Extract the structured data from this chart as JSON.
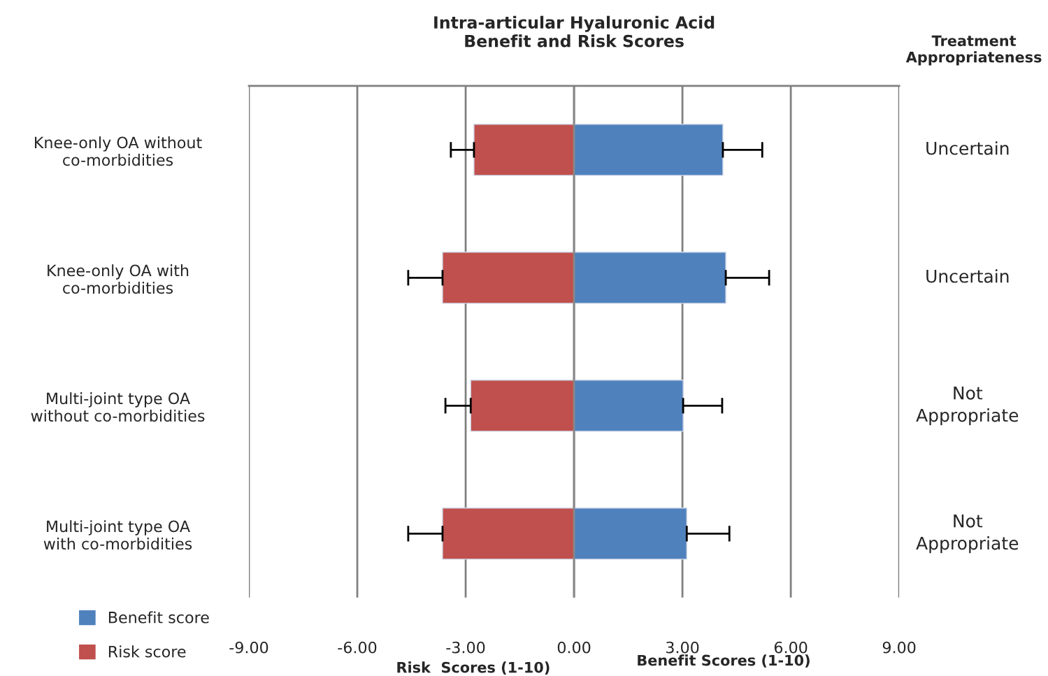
{
  "chart_data": {
    "type": "bar",
    "orientation": "horizontal",
    "title": "Intra-articular Hyaluronic Acid\nBenefit and Risk Scores",
    "xlabel": "Risk  Scores (1-10)",
    "categories": [
      "Knee-only OA without\nco-morbidities",
      "Knee-only OA with\nco-morbidities",
      "Multi-joint type OA\nwithout co-morbidities",
      "Multi-joint type OA\nwith co-morbidities"
    ],
    "series": [
      {
        "name": "Benefit score",
        "color": "#4f81bd",
        "values": [
          4.12,
          4.2,
          3.02,
          3.12
        ],
        "errors": [
          [
            4.12,
            5.21
          ],
          [
            4.2,
            5.4
          ],
          [
            3.02,
            4.1
          ],
          [
            3.12,
            4.3
          ]
        ]
      },
      {
        "name": "Risk score",
        "color": "#c0504d",
        "values": [
          -2.77,
          -3.64,
          -2.86,
          -3.64
        ],
        "errors": [
          [
            -3.41,
            -2.77
          ],
          [
            -4.59,
            -3.64
          ],
          [
            -3.56,
            -2.86
          ],
          [
            -4.59,
            -3.64
          ]
        ]
      }
    ],
    "xlim": [
      -9,
      9
    ],
    "xticks": [
      {
        "value": -9,
        "label": "-9.00"
      },
      {
        "value": -6,
        "label": "-6.00"
      },
      {
        "value": -3,
        "label": "-3.00"
      },
      {
        "value": 0,
        "label": "0.00"
      },
      {
        "value": 3,
        "label": "3.00"
      },
      {
        "value": 6,
        "label": "6.00"
      },
      {
        "value": 9,
        "label": "9.00"
      }
    ],
    "grid": "x",
    "legend": "bottom left",
    "stacked": true,
    "annotations": [
      "Treatment\nAppropriateness",
      "Benefit Scores (1-10)",
      "Uncertain",
      "Uncertain",
      "Not\nAppropriate",
      "Not\nAppropriate"
    ]
  }
}
